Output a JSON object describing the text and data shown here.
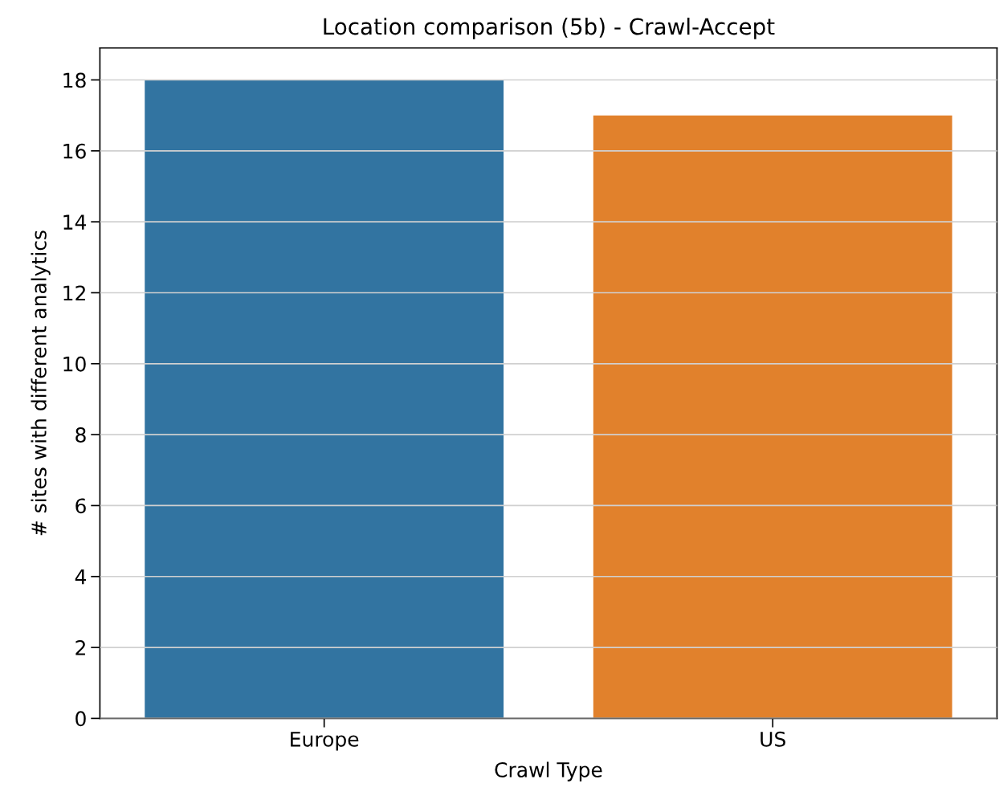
{
  "chart_data": {
    "type": "bar",
    "title": "Location comparison (5b) - Crawl-Accept",
    "xlabel": "Crawl Type",
    "ylabel": "# sites with different analytics",
    "categories": [
      "Europe",
      "US"
    ],
    "values": [
      18,
      17
    ],
    "colors": [
      "#3274a1",
      "#e1812c"
    ],
    "ylim": [
      0,
      18.9
    ],
    "yticks": [
      0,
      2,
      4,
      6,
      8,
      10,
      12,
      14,
      16,
      18
    ],
    "grid": "y"
  }
}
